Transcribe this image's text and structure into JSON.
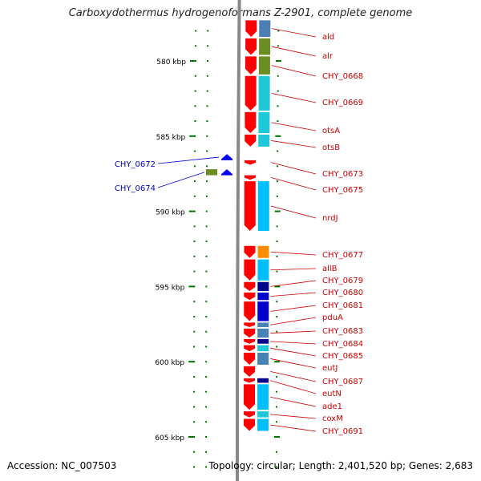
{
  "title": "Carboxydothermus hydrogenoformans Z-2901, complete genome",
  "accession": "Accession: NC_007503",
  "topology": "Topology: circular; Length: 2,401,520 bp; Genes: 2,683",
  "colors": {
    "backbone": "#888888",
    "forward_gene": "#ff0000",
    "reverse_gene": "#0000ee",
    "forward_label": "#cc0000",
    "reverse_label": "#0000cc",
    "tick": "#007700"
  },
  "scale": {
    "unit": "kbp",
    "labels": [
      {
        "kbp": 580,
        "text": "580 kbp"
      },
      {
        "kbp": 585,
        "text": "585 kbp"
      },
      {
        "kbp": 590,
        "text": "590 kbp"
      },
      {
        "kbp": 595,
        "text": "595 kbp"
      },
      {
        "kbp": 600,
        "text": "600 kbp"
      },
      {
        "kbp": 605,
        "text": "605 kbp"
      }
    ]
  },
  "forward_genes": [
    {
      "name": "ald",
      "start": 577.3,
      "end": 578.4,
      "cog_color": "#4a7fb5"
    },
    {
      "name": "alr",
      "start": 578.5,
      "end": 579.6,
      "cog_color": "#6b8e23"
    },
    {
      "name": "CHY_0668",
      "start": 579.7,
      "end": 580.9,
      "cog_color": "#6b8e23"
    },
    {
      "name": "CHY_0669",
      "start": 581.0,
      "end": 583.3,
      "cog_color": "#1ec8d8"
    },
    {
      "name": "otsA",
      "start": 583.4,
      "end": 584.8,
      "cog_color": "#1ec8d8"
    },
    {
      "name": "otsB",
      "start": 584.9,
      "end": 585.7,
      "cog_color": "#1ec8d8"
    },
    {
      "name": "CHY_0673",
      "start": 586.6,
      "end": 586.9,
      "cog_color": ""
    },
    {
      "name": "CHY_0675",
      "start": 587.6,
      "end": 587.9,
      "cog_color": ""
    },
    {
      "name": "nrdJ",
      "start": 588.0,
      "end": 591.3,
      "cog_color": "#00bfff"
    },
    {
      "name": "CHY_0677",
      "start": 592.3,
      "end": 593.1,
      "cog_color": "#ff8c00"
    },
    {
      "name": "allB",
      "start": 593.2,
      "end": 594.6,
      "cog_color": "#00bfff"
    },
    {
      "name": "CHY_0679",
      "start": 594.7,
      "end": 595.3,
      "cog_color": "#00008b"
    },
    {
      "name": "CHY_0680",
      "start": 595.4,
      "end": 595.9,
      "cog_color": "#0000cd"
    },
    {
      "name": "CHY_0681",
      "start": 596.0,
      "end": 597.3,
      "cog_color": "#0000cd"
    },
    {
      "name": "pduA",
      "start": 597.4,
      "end": 597.7,
      "cog_color": "#4682b4"
    },
    {
      "name": "CHY_0683",
      "start": 597.8,
      "end": 598.4,
      "cog_color": "#4682b4"
    },
    {
      "name": "CHY_0684",
      "start": 598.5,
      "end": 598.8,
      "cog_color": "#00008b"
    },
    {
      "name": "CHY_0685",
      "start": 598.9,
      "end": 599.3,
      "cog_color": "#1ec8d8"
    },
    {
      "name": "eutJ",
      "start": 599.4,
      "end": 600.2,
      "cog_color": "#4682b4"
    },
    {
      "name": "CHY_0687",
      "start": 600.3,
      "end": 601.0,
      "cog_color": ""
    },
    {
      "name": "eutN",
      "start": 601.1,
      "end": 601.4,
      "cog_color": "#00008b"
    },
    {
      "name": "ade1",
      "start": 601.5,
      "end": 603.2,
      "cog_color": "#00bfff"
    },
    {
      "name": "coxM",
      "start": 603.3,
      "end": 603.7,
      "cog_color": "#1ec8d8"
    },
    {
      "name": "CHY_0691",
      "start": 603.8,
      "end": 604.6,
      "cog_color": "#00bfff"
    }
  ],
  "reverse_genes": [
    {
      "name": "CHY_0672",
      "start": 586.2,
      "end": 586.6,
      "cog_color": ""
    },
    {
      "name": "CHY_0674",
      "start": 587.2,
      "end": 587.6,
      "cog_color": "#6b8e23"
    }
  ]
}
